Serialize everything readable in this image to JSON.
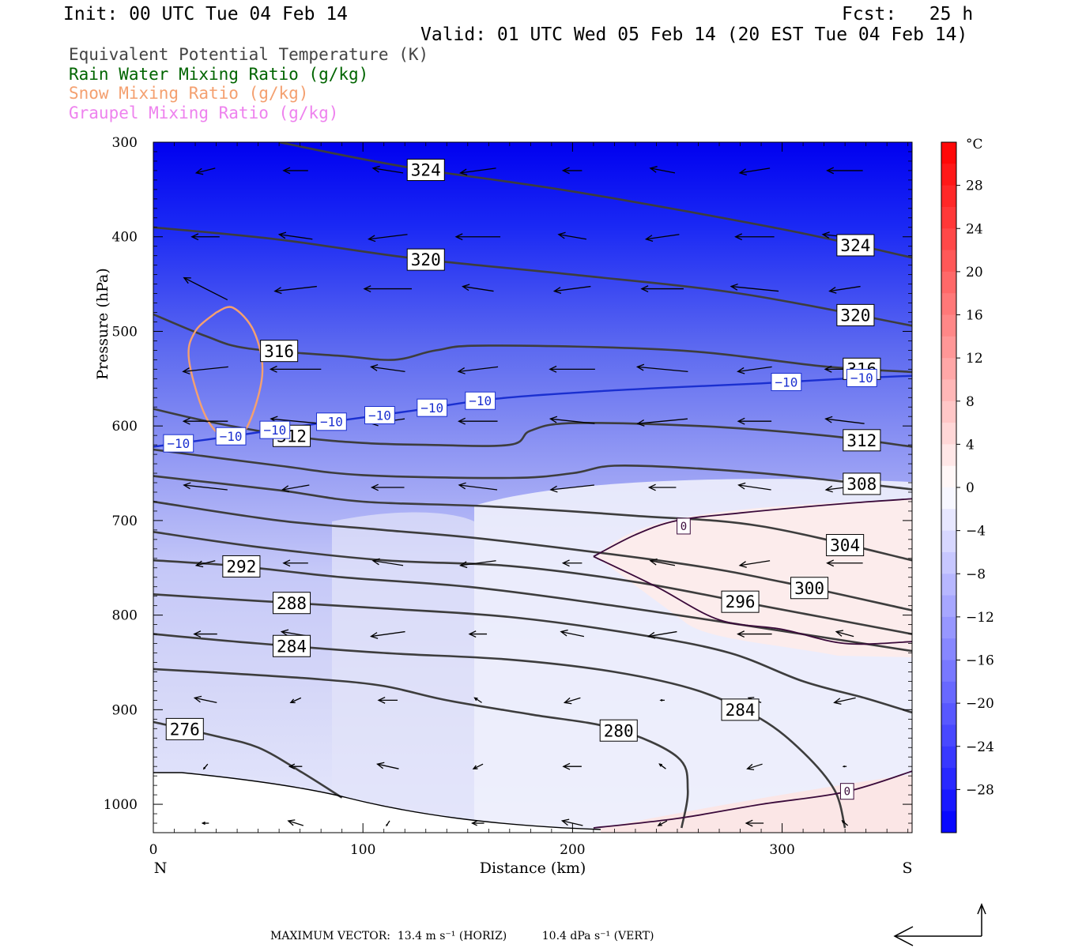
{
  "header": {
    "init": "Init: 00 UTC Tue 04 Feb 14",
    "fcst": "Fcst:   25 h",
    "valid": "Valid: 01 UTC Wed 05 Feb 14 (20 EST Tue 04 Feb 14)"
  },
  "fields": [
    {
      "label": "Equivalent Potential Temperature (K)",
      "color": "#444444"
    },
    {
      "label": "Rain Water Mixing Ratio (g/kg)",
      "color": "#006400"
    },
    {
      "label": "Snow Mixing Ratio (g/kg)",
      "color": "#f4a070"
    },
    {
      "label": "Graupel Mixing Ratio (g/kg)",
      "color": "#ee82ee"
    }
  ],
  "footer": {
    "max_vector": "MAXIMUM VECTOR:  13.4 m s⁻¹ (HORIZ)          10.4 dPa s⁻¹ (VERT)"
  },
  "chart_data": {
    "type": "heatmap",
    "xlabel": "Distance (km)",
    "ylabel": "Pressure (hPa)",
    "xlim": [
      0,
      362
    ],
    "ylim": [
      1030,
      300
    ],
    "x_ticks": [
      0,
      100,
      200,
      300
    ],
    "y_ticks": [
      300,
      400,
      500,
      600,
      700,
      800,
      900,
      1000
    ],
    "x_end_labels": {
      "left": "N",
      "right": "S"
    },
    "colorbar": {
      "unit": "°C",
      "labels": [
        28,
        24,
        20,
        16,
        12,
        8,
        4,
        0,
        -4,
        -8,
        -12,
        -16,
        -20,
        -24,
        -28
      ],
      "range": [
        -32,
        32
      ]
    },
    "theta_e_contours": [
      {
        "value": 324,
        "points": [
          [
            60,
            300
          ],
          [
            120,
            326
          ],
          [
            200,
            352
          ],
          [
            300,
            392
          ],
          [
            362,
            422
          ]
        ]
      },
      {
        "value": 320,
        "points": [
          [
            0,
            390
          ],
          [
            60,
            403
          ],
          [
            125,
            423
          ],
          [
            200,
            440
          ],
          [
            280,
            460
          ],
          [
            362,
            494
          ]
        ]
      },
      {
        "value": 316,
        "points": [
          [
            0,
            482
          ],
          [
            25,
            505
          ],
          [
            45,
            518
          ],
          [
            90,
            526
          ],
          [
            115,
            530
          ],
          [
            135,
            520
          ],
          [
            160,
            515
          ],
          [
            250,
            520
          ],
          [
            320,
            537
          ],
          [
            362,
            543
          ]
        ]
      },
      {
        "value": 312,
        "points": [
          [
            0,
            582
          ],
          [
            30,
            597
          ],
          [
            70,
            612
          ],
          [
            100,
            618
          ],
          [
            130,
            620
          ],
          [
            170,
            620
          ],
          [
            180,
            605
          ],
          [
            200,
            597
          ],
          [
            260,
            600
          ],
          [
            320,
            610
          ],
          [
            362,
            622
          ]
        ]
      },
      {
        "value": 308,
        "points": [
          [
            0,
            625
          ],
          [
            60,
            642
          ],
          [
            100,
            652
          ],
          [
            170,
            655
          ],
          [
            200,
            650
          ],
          [
            220,
            642
          ],
          [
            260,
            645
          ],
          [
            300,
            652
          ],
          [
            362,
            667
          ]
        ]
      },
      {
        "value": 304,
        "points": [
          [
            0,
            653
          ],
          [
            60,
            668
          ],
          [
            100,
            680
          ],
          [
            160,
            685
          ],
          [
            230,
            695
          ],
          [
            290,
            706
          ],
          [
            362,
            742
          ]
        ]
      },
      {
        "value": 300,
        "points": [
          [
            0,
            680
          ],
          [
            60,
            700
          ],
          [
            110,
            710
          ],
          [
            160,
            720
          ],
          [
            250,
            745
          ],
          [
            300,
            765
          ],
          [
            362,
            795
          ]
        ]
      },
      {
        "value": 296,
        "points": [
          [
            0,
            712
          ],
          [
            50,
            728
          ],
          [
            110,
            742
          ],
          [
            170,
            748
          ],
          [
            230,
            765
          ],
          [
            290,
            790
          ],
          [
            362,
            820
          ]
        ]
      },
      {
        "value": 292,
        "points": [
          [
            0,
            742
          ],
          [
            40,
            748
          ],
          [
            90,
            760
          ],
          [
            150,
            770
          ],
          [
            210,
            787
          ],
          [
            280,
            810
          ],
          [
            362,
            838
          ]
        ]
      },
      {
        "value": 288,
        "points": [
          [
            0,
            778
          ],
          [
            50,
            785
          ],
          [
            110,
            793
          ],
          [
            170,
            802
          ],
          [
            230,
            820
          ],
          [
            275,
            840
          ],
          [
            310,
            870
          ],
          [
            340,
            888
          ],
          [
            362,
            903
          ]
        ]
      },
      {
        "value": 284,
        "points": [
          [
            0,
            820
          ],
          [
            50,
            830
          ],
          [
            110,
            840
          ],
          [
            170,
            847
          ],
          [
            220,
            860
          ],
          [
            260,
            880
          ],
          [
            290,
            910
          ],
          [
            310,
            945
          ],
          [
            325,
            985
          ],
          [
            330,
            1025
          ]
        ]
      },
      {
        "value": 280,
        "points": [
          [
            0,
            857
          ],
          [
            40,
            862
          ],
          [
            80,
            868
          ],
          [
            110,
            875
          ],
          [
            140,
            890
          ],
          [
            180,
            905
          ],
          [
            220,
            920
          ],
          [
            250,
            950
          ],
          [
            255,
            985
          ],
          [
            252,
            1025
          ]
        ]
      },
      {
        "value": 276,
        "points": [
          [
            0,
            913
          ],
          [
            30,
            928
          ],
          [
            50,
            940
          ],
          [
            70,
            965
          ],
          [
            90,
            993
          ]
        ]
      }
    ],
    "temperature_contours": [
      {
        "value": -10,
        "points": [
          [
            0,
            622
          ],
          [
            40,
            610
          ],
          [
            80,
            597
          ],
          [
            120,
            585
          ],
          [
            160,
            572
          ],
          [
            200,
            565
          ],
          [
            240,
            560
          ],
          [
            290,
            555
          ],
          [
            330,
            550
          ],
          [
            362,
            547
          ]
        ]
      },
      {
        "value": 0,
        "points": [
          [
            210,
            738
          ],
          [
            230,
            715
          ],
          [
            250,
            700
          ],
          [
            280,
            692
          ],
          [
            330,
            682
          ],
          [
            362,
            677
          ]
        ]
      },
      {
        "value": 0,
        "points": [
          [
            210,
            738
          ],
          [
            240,
            770
          ],
          [
            270,
            805
          ],
          [
            300,
            815
          ],
          [
            330,
            830
          ],
          [
            362,
            828
          ]
        ]
      },
      {
        "value": 0,
        "points": [
          [
            210,
            1025
          ],
          [
            250,
            1015
          ],
          [
            290,
            1000
          ],
          [
            330,
            987
          ],
          [
            362,
            965
          ]
        ]
      }
    ],
    "snow_mixing_ratio": {
      "value": 0.01,
      "points": [
        [
          30,
          480
        ],
        [
          38,
          475
        ],
        [
          48,
          500
        ],
        [
          52,
          545
        ],
        [
          45,
          600
        ],
        [
          36,
          615
        ],
        [
          25,
          590
        ],
        [
          17,
          530
        ],
        [
          20,
          500
        ],
        [
          30,
          480
        ]
      ]
    }
  }
}
